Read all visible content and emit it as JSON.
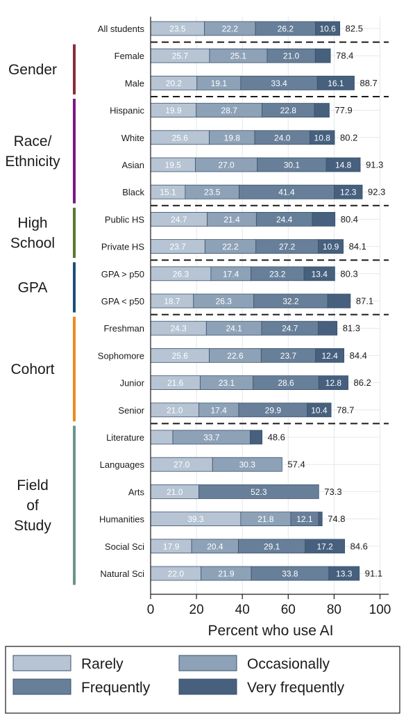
{
  "chart_data": {
    "type": "bar",
    "orientation": "horizontal",
    "stacked": true,
    "xlabel": "Percent who use AI",
    "xlim": [
      0,
      100
    ],
    "xticks": [
      0,
      20,
      40,
      60,
      80,
      100
    ],
    "legend_position": "bottom",
    "legend": [
      "Rarely",
      "Occasionally",
      "Frequently",
      "Very frequently"
    ],
    "colors": {
      "Rarely": "#b6c4d3",
      "Occasionally": "#8ea2b7",
      "Frequently": "#677f99",
      "Very frequently": "#46607e",
      "Gender": "#8a2e3b",
      "Race/ Ethnicity": "#7b1a83",
      "High School": "#587a33",
      "GPA": "#1f4e79",
      "Cohort": "#f08a24",
      "Field of Study": "#6b948c"
    },
    "groups": [
      {
        "name": "",
        "rows": [
          {
            "label": "All students",
            "values": [
              23.5,
              22.2,
              26.2,
              10.6
            ],
            "labels": [
              "23.5",
              "22.2",
              "26.2",
              "10.6"
            ],
            "total": "82.5"
          }
        ]
      },
      {
        "name": "Gender",
        "rows": [
          {
            "label": "Female",
            "values": [
              25.7,
              25.1,
              21.0,
              6.6
            ],
            "labels": [
              "25.7",
              "25.1",
              "21.0",
              ""
            ],
            "total": "78.4"
          },
          {
            "label": "Male",
            "values": [
              20.2,
              19.1,
              33.4,
              16.1
            ],
            "labels": [
              "20.2",
              "19.1",
              "33.4",
              "16.1"
            ],
            "total": "88.7"
          }
        ]
      },
      {
        "name": "Race/ Ethnicity",
        "rows": [
          {
            "label": "Hispanic",
            "values": [
              19.9,
              28.7,
              22.8,
              6.5
            ],
            "labels": [
              "19.9",
              "28.7",
              "22.8",
              ""
            ],
            "total": "77.9"
          },
          {
            "label": "White",
            "values": [
              25.6,
              19.8,
              24.0,
              10.8
            ],
            "labels": [
              "25.6",
              "19.8",
              "24.0",
              "10.8"
            ],
            "total": "80.2"
          },
          {
            "label": "Asian",
            "values": [
              19.5,
              27.0,
              30.1,
              14.8
            ],
            "labels": [
              "19.5",
              "27.0",
              "30.1",
              "14.8"
            ],
            "total": "91.3"
          },
          {
            "label": "Black",
            "values": [
              15.1,
              23.5,
              41.4,
              12.3
            ],
            "labels": [
              "15.1",
              "23.5",
              "41.4",
              "12.3"
            ],
            "total": "92.3"
          }
        ]
      },
      {
        "name": "High School",
        "rows": [
          {
            "label": "Public HS",
            "values": [
              24.7,
              21.4,
              24.4,
              9.9
            ],
            "labels": [
              "24.7",
              "21.4",
              "24.4",
              ""
            ],
            "total": "80.4"
          },
          {
            "label": "Private HS",
            "values": [
              23.7,
              22.2,
              27.2,
              10.9
            ],
            "labels": [
              "23.7",
              "22.2",
              "27.2",
              "10.9"
            ],
            "total": "84.1"
          }
        ]
      },
      {
        "name": "GPA",
        "rows": [
          {
            "label": "GPA > p50",
            "values": [
              26.3,
              17.4,
              23.2,
              13.4
            ],
            "labels": [
              "26.3",
              "17.4",
              "23.2",
              "13.4"
            ],
            "total": "80.3"
          },
          {
            "label": "GPA < p50",
            "values": [
              18.7,
              26.3,
              32.2,
              9.9
            ],
            "labels": [
              "18.7",
              "26.3",
              "32.2",
              ""
            ],
            "total": "87.1"
          }
        ]
      },
      {
        "name": "Cohort",
        "rows": [
          {
            "label": "Freshman",
            "values": [
              24.3,
              24.1,
              24.7,
              8.2
            ],
            "labels": [
              "24.3",
              "24.1",
              "24.7",
              ""
            ],
            "total": "81.3"
          },
          {
            "label": "Sophomore",
            "values": [
              25.6,
              22.6,
              23.7,
              12.4
            ],
            "labels": [
              "25.6",
              "22.6",
              "23.7",
              "12.4"
            ],
            "total": "84.4"
          },
          {
            "label": "Junior",
            "values": [
              21.6,
              23.1,
              28.6,
              12.8
            ],
            "labels": [
              "21.6",
              "23.1",
              "28.6",
              "12.8"
            ],
            "total": "86.2"
          },
          {
            "label": "Senior",
            "values": [
              21.0,
              17.4,
              29.9,
              10.4
            ],
            "labels": [
              "21.0",
              "17.4",
              "29.9",
              "10.4"
            ],
            "total": "78.7"
          }
        ]
      },
      {
        "name": "Field of Study",
        "rows": [
          {
            "label": "Literature",
            "values": [
              9.7,
              33.7,
              0,
              5.2
            ],
            "labels": [
              "",
              "33.7",
              "",
              ""
            ],
            "total": "48.6"
          },
          {
            "label": "Languages",
            "values": [
              27.0,
              30.3,
              0,
              0
            ],
            "labels": [
              "27.0",
              "30.3",
              "",
              ""
            ],
            "total": "57.4"
          },
          {
            "label": "Arts",
            "values": [
              21.0,
              0,
              52.3,
              0
            ],
            "labels": [
              "21.0",
              "",
              "52.3",
              ""
            ],
            "total": "73.3"
          },
          {
            "label": "Humanities",
            "values": [
              39.3,
              21.8,
              12.1,
              1.6
            ],
            "labels": [
              "39.3",
              "21.8",
              "12.1",
              ""
            ],
            "total": "74.8"
          },
          {
            "label": "Social Sci",
            "values": [
              17.9,
              20.4,
              29.1,
              17.2
            ],
            "labels": [
              "17.9",
              "20.4",
              "29.1",
              "17.2"
            ],
            "total": "84.6"
          },
          {
            "label": "Natural Sci",
            "values": [
              22.0,
              21.9,
              33.8,
              13.3
            ],
            "labels": [
              "22.0",
              "21.9",
              "33.8",
              "13.3"
            ],
            "total": "91.1"
          }
        ]
      }
    ]
  }
}
